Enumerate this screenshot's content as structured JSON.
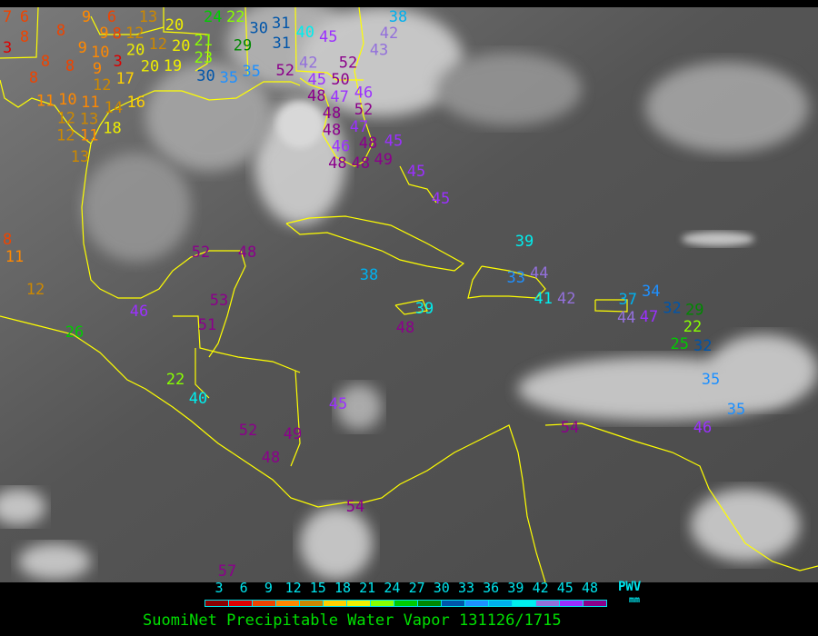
{
  "map": {
    "product": "SuomiNet Precipitable Water Vapor",
    "timestamp": "131126/1715",
    "title": "SuomiNet Precipitable Water Vapor 131126/1715",
    "background": "infrared satellite imagery",
    "coastline_color": "#ffff00",
    "stations": [
      7,
      6,
      3,
      8,
      8,
      9,
      6,
      9,
      8,
      9,
      8,
      8,
      10,
      3,
      8,
      12,
      20,
      12,
      20,
      20,
      13,
      21,
      23,
      20,
      19,
      9,
      12,
      17,
      24,
      22,
      29,
      30,
      31,
      31,
      30,
      35,
      35,
      52,
      42,
      40,
      45,
      43,
      42,
      38,
      52,
      45,
      48,
      50,
      46,
      47,
      48,
      52,
      48,
      47,
      48,
      49,
      46,
      48,
      48,
      45,
      11,
      10,
      11,
      12,
      13,
      14,
      12,
      11,
      18,
      16,
      13,
      45,
      45,
      39,
      38,
      39,
      48,
      52,
      48,
      46,
      53,
      51,
      26,
      22,
      40,
      45,
      52,
      49,
      48,
      54,
      57,
      8,
      11,
      12,
      33,
      44,
      41,
      42,
      37,
      34,
      44,
      47,
      32,
      29,
      22,
      25,
      32,
      35,
      35,
      46,
      54
    ]
  },
  "legend": {
    "ticks": [
      "3",
      "6",
      "9",
      "12",
      "15",
      "18",
      "21",
      "24",
      "27",
      "30",
      "33",
      "36",
      "39",
      "42",
      "45",
      "48"
    ],
    "unit_label": "PWV",
    "unit": "mm",
    "colors": [
      "#8b0000",
      "#dd0000",
      "#ee4400",
      "#ff8800",
      "#cc8800",
      "#ffd000",
      "#eeee00",
      "#88ff00",
      "#00cc00",
      "#008800",
      "#0055aa",
      "#1e90ff",
      "#00b0ee",
      "#00eeee",
      "#9370db",
      "#9b30ff",
      "#8b008b"
    ]
  }
}
